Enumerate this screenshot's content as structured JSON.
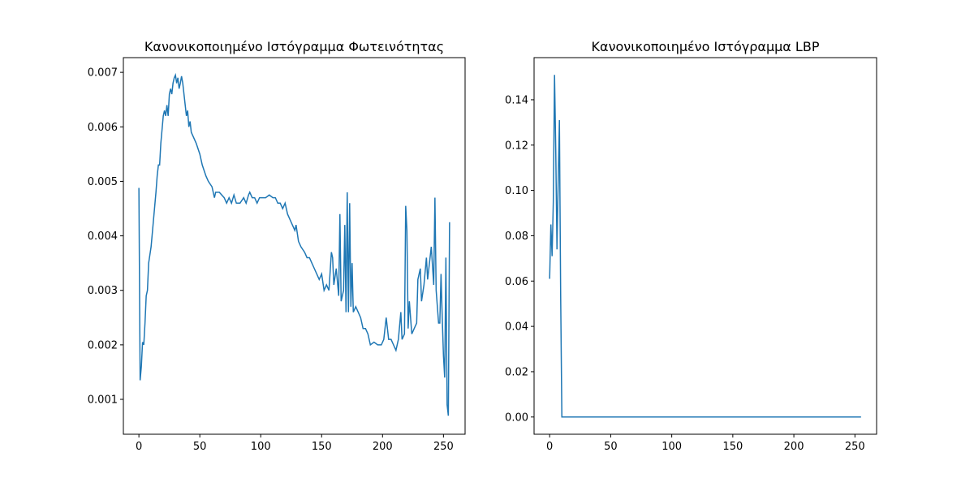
{
  "chart_data": [
    {
      "type": "line",
      "title": "Κανονικοποιημένο Ιστόγραμμα Φωτεινότητας",
      "x": [
        0,
        1,
        2,
        3,
        4,
        5,
        6,
        7,
        8,
        10,
        12,
        14,
        15,
        16,
        17,
        18,
        20,
        21,
        22,
        23,
        24,
        25,
        26,
        27,
        28,
        29,
        30,
        31,
        32,
        33,
        34,
        35,
        36,
        37,
        38,
        39,
        40,
        41,
        42,
        43,
        45,
        47,
        50,
        52,
        55,
        57,
        60,
        62,
        63,
        66,
        70,
        72,
        74,
        76,
        78,
        80,
        83,
        86,
        88,
        90,
        91,
        93,
        95,
        97,
        99,
        101,
        104,
        107,
        110,
        112,
        114,
        116,
        118,
        120,
        122,
        124,
        126,
        128,
        129,
        131,
        133,
        136,
        138,
        140,
        142,
        144,
        146,
        148,
        150,
        152,
        154,
        156,
        158,
        159,
        160,
        162,
        164,
        165,
        166,
        168,
        169,
        170,
        171,
        172,
        173,
        174,
        175,
        176,
        178,
        180,
        182,
        184,
        186,
        188,
        190,
        193,
        196,
        199,
        201,
        203,
        205,
        207,
        209,
        211,
        213,
        215,
        216,
        218,
        219,
        220,
        221,
        222,
        224,
        226,
        228,
        229,
        231,
        232,
        234,
        236,
        237,
        240,
        242,
        243,
        244,
        246,
        247,
        248,
        249,
        250,
        251,
        252,
        253,
        254,
        255
      ],
      "series": [
        {
          "color": "#1f77b4",
          "values": [
            0.00488,
            0.00135,
            0.0016,
            0.00205,
            0.002,
            0.0024,
            0.0029,
            0.003,
            0.0035,
            0.0038,
            0.0043,
            0.0048,
            0.0051,
            0.0053,
            0.0053,
            0.0057,
            0.0062,
            0.0063,
            0.0062,
            0.0064,
            0.0062,
            0.0066,
            0.0067,
            0.0066,
            0.0068,
            0.0069,
            0.00695,
            0.0068,
            0.0069,
            0.0067,
            0.0068,
            0.00693,
            0.0068,
            0.0066,
            0.0064,
            0.0062,
            0.0063,
            0.006,
            0.0061,
            0.0059,
            0.0058,
            0.0057,
            0.0055,
            0.0053,
            0.0051,
            0.005,
            0.0049,
            0.0047,
            0.0048,
            0.0048,
            0.0047,
            0.0046,
            0.0047,
            0.0046,
            0.00475,
            0.0046,
            0.0046,
            0.0047,
            0.0046,
            0.00475,
            0.0048,
            0.0047,
            0.0047,
            0.0046,
            0.0047,
            0.0047,
            0.0047,
            0.00475,
            0.0047,
            0.0047,
            0.0046,
            0.0046,
            0.0045,
            0.0046,
            0.0044,
            0.0043,
            0.0042,
            0.0041,
            0.0042,
            0.0039,
            0.0038,
            0.0037,
            0.0036,
            0.0036,
            0.0035,
            0.0034,
            0.0033,
            0.0032,
            0.0033,
            0.003,
            0.0031,
            0.003,
            0.0037,
            0.0036,
            0.0031,
            0.0034,
            0.0029,
            0.0044,
            0.0028,
            0.003,
            0.0042,
            0.0026,
            0.0048,
            0.0026,
            0.0046,
            0.0027,
            0.0035,
            0.0026,
            0.0027,
            0.0026,
            0.0025,
            0.0023,
            0.0023,
            0.0022,
            0.002,
            0.00205,
            0.002,
            0.002,
            0.0021,
            0.0025,
            0.0021,
            0.0021,
            0.002,
            0.0019,
            0.0021,
            0.0026,
            0.0021,
            0.0022,
            0.00455,
            0.0041,
            0.0023,
            0.0028,
            0.0022,
            0.0023,
            0.0024,
            0.0032,
            0.0034,
            0.0028,
            0.0031,
            0.0036,
            0.0032,
            0.0038,
            0.0031,
            0.0047,
            0.003,
            0.0024,
            0.0024,
            0.0033,
            0.0025,
            0.0018,
            0.0014,
            0.0036,
            0.0009,
            0.0007,
            0.00425
          ]
        }
      ],
      "xlim": [
        -12.75,
        267.75
      ],
      "xticks": [
        0,
        50,
        100,
        150,
        200,
        250
      ],
      "ylim": [
        0.00036,
        0.00727
      ],
      "yticks": [
        0.001,
        0.002,
        0.003,
        0.004,
        0.005,
        0.006,
        0.007
      ]
    },
    {
      "type": "line",
      "title": "Κανονικοποιημένο Ιστόγραμμα LBP",
      "x": [
        0,
        1,
        2,
        3,
        4,
        5,
        6,
        7,
        8,
        9,
        10,
        255
      ],
      "series": [
        {
          "color": "#1f77b4",
          "values": [
            0.061,
            0.085,
            0.071,
            0.095,
            0.151,
            0.118,
            0.074,
            0.104,
            0.131,
            0.055,
            0,
            0
          ]
        }
      ],
      "xlim": [
        -12.75,
        267.75
      ],
      "xticks": [
        0,
        50,
        100,
        150,
        200,
        250
      ],
      "ylim": [
        -0.0076,
        0.1586
      ],
      "yticks": [
        {
          "value": 0,
          "label": "0.00"
        },
        0.02,
        0.04,
        0.06,
        0.08,
        {
          "value": 0.1,
          "label": "0.10"
        },
        0.12,
        0.14
      ]
    }
  ]
}
